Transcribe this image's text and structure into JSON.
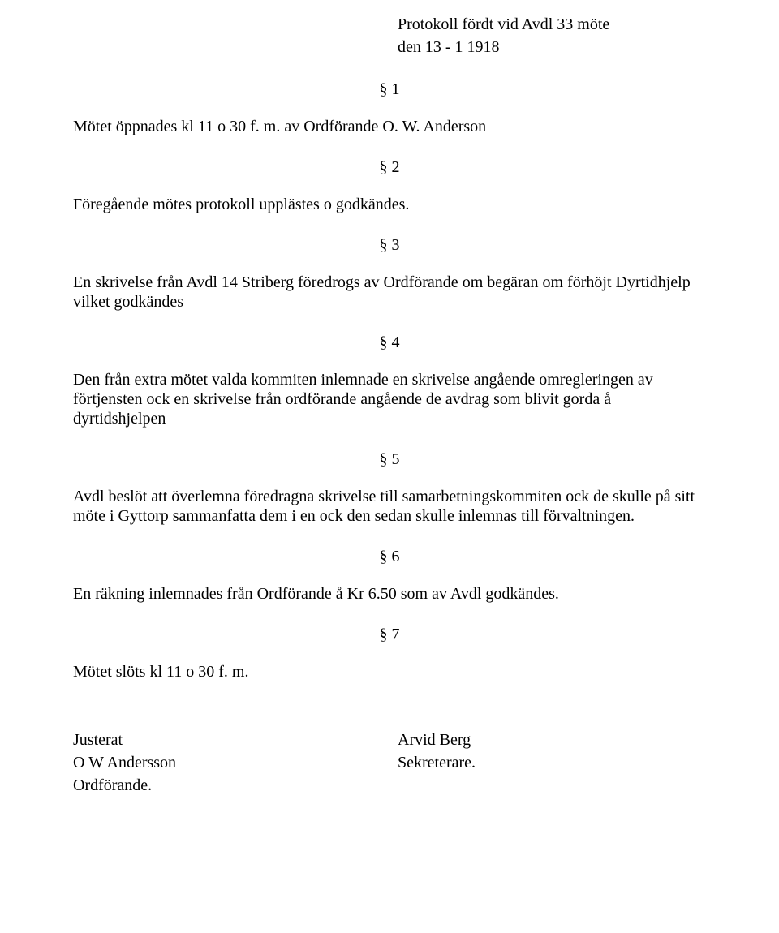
{
  "header": {
    "line1": "Protokoll fördt vid Avdl 33 möte",
    "line2": "den 13 - 1 1918"
  },
  "s1": {
    "num": "§ 1",
    "text": "Mötet öppnades kl 11 o 30 f. m. av Ordförande O. W. Anderson"
  },
  "s2": {
    "num": "§ 2",
    "text": "Föregående mötes protokoll upplästes o godkändes."
  },
  "s3": {
    "num": "§ 3",
    "text": "En skrivelse från Avdl 14 Striberg föredrogs av Ordförande om begäran om förhöjt Dyrtidhjelp vilket godkändes"
  },
  "s4": {
    "num": "§ 4",
    "text": "Den från extra mötet valda kommiten inlemnade en skrivelse angående omregleringen av förtjensten ock en skrivelse från ordförande angående de avdrag som blivit gorda å dyrtidshjelpen"
  },
  "s5": {
    "num": "§ 5",
    "text": "Avdl beslöt att överlemna föredragna skrivelse till samarbetningskommiten ock de skulle på sitt möte i Gyttorp sammanfatta dem i en ock den sedan skulle inlemnas till förvaltningen."
  },
  "s6": {
    "num": "§ 6",
    "text": "En räkning inlemnades från Ordförande å Kr 6.50 som av Avdl godkändes."
  },
  "s7": {
    "num": "§ 7",
    "text": "Mötet slöts kl 11 o 30 f. m."
  },
  "signatures": {
    "left1": "Justerat",
    "left2": "O W Andersson",
    "left3": "Ordförande.",
    "right1": "Arvid Berg",
    "right2": "Sekreterare."
  },
  "colors": {
    "text": "#000000",
    "background": "#ffffff"
  },
  "typography": {
    "font_family": "Times New Roman",
    "body_fontsize_pt": 15
  }
}
